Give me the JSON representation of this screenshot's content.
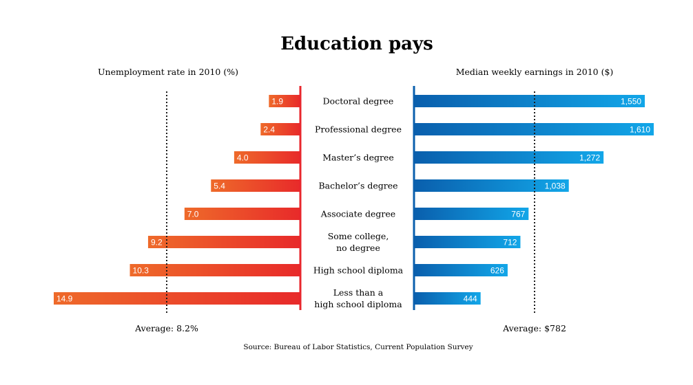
{
  "chart_data": [
    {
      "type": "bar",
      "orientation": "horizontal",
      "direction": "leftward",
      "title": "Unemployment rate in 2010 (%)",
      "categories": [
        "Doctoral degree",
        "Professional degree",
        "Master’s degree",
        "Bachelor’s degree",
        "Associate degree",
        "Some college, no degree",
        "High school diploma",
        "Less than a high school diploma"
      ],
      "values": [
        1.9,
        2.4,
        4.0,
        5.4,
        7.0,
        9.2,
        10.3,
        14.9
      ],
      "value_labels": [
        "1.9",
        "2.4",
        "4.0",
        "5.4",
        "7.0",
        "9.2",
        "10.3",
        "14.9"
      ],
      "average": 8.2,
      "average_label": "Average: 8.2%",
      "colors": {
        "bar_light": "#ee6a2a",
        "bar_dark": "#e82a2a",
        "axis": "#e8262c"
      }
    },
    {
      "type": "bar",
      "orientation": "horizontal",
      "direction": "rightward",
      "title": "Median weekly earnings in 2010 ($)",
      "categories": [
        "Doctoral degree",
        "Professional degree",
        "Master’s degree",
        "Bachelor’s degree",
        "Associate degree",
        "Some college, no degree",
        "High school diploma",
        "Less than a high school diploma"
      ],
      "values": [
        1550,
        1610,
        1272,
        1038,
        767,
        712,
        626,
        444
      ],
      "value_labels": [
        "1,550",
        "1,610",
        "1,272",
        "1,038",
        "767",
        "712",
        "626",
        "444"
      ],
      "average": 782,
      "average_label": "Average: $782",
      "colors": {
        "bar_dark": "#0a5fad",
        "bar_light": "#12a6e8",
        "axis": "#0a5fad"
      }
    }
  ],
  "header": {
    "title": "Education pays"
  },
  "categories_display": [
    [
      "Doctoral degree"
    ],
    [
      "Professional degree"
    ],
    [
      "Master’s degree"
    ],
    [
      "Bachelor’s degree"
    ],
    [
      "Associate degree"
    ],
    [
      "Some college,",
      "no degree"
    ],
    [
      "High school diploma"
    ],
    [
      "Less than a",
      "high school diploma"
    ]
  ],
  "footer": {
    "source": "Source: Bureau of Labor Statistics, Current Population Survey"
  }
}
